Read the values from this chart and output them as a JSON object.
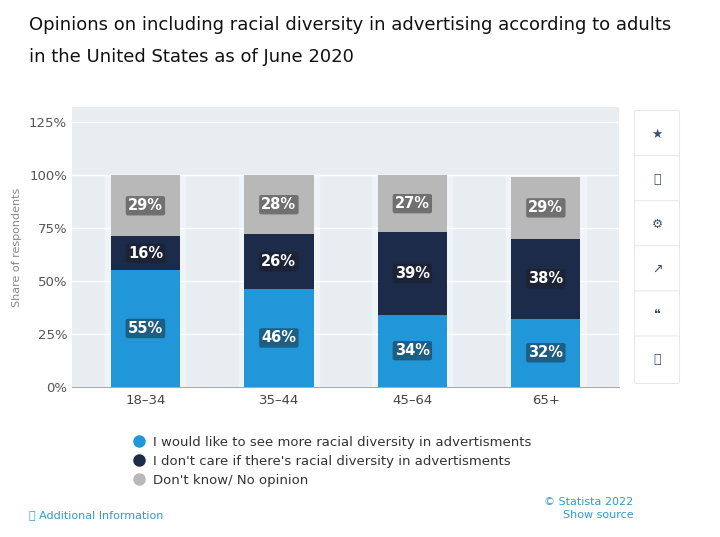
{
  "title_line1": "Opinions on including racial diversity in advertising according to adults",
  "title_line2": "in the United States as of June 2020",
  "categories": [
    "18–34",
    "35–44",
    "45–64",
    "65+"
  ],
  "series": {
    "blue": [
      55,
      46,
      34,
      32
    ],
    "dark": [
      16,
      26,
      39,
      38
    ],
    "gray": [
      29,
      28,
      27,
      29
    ]
  },
  "colors": {
    "blue": "#2196d8",
    "dark": "#1c2b4a",
    "gray": "#b8b8b8"
  },
  "legend_labels": [
    "I would like to see more racial diversity in advertisments",
    "I don't care if there's racial diversity in advertisments",
    "Don't know/ No opinion"
  ],
  "ylabel": "Share of respondents",
  "yticks": [
    0,
    25,
    50,
    75,
    100,
    125
  ],
  "ytick_labels": [
    "0%",
    "25%",
    "50%",
    "75%",
    "100%",
    "125%"
  ],
  "ylim": [
    0,
    132
  ],
  "bar_width": 0.52,
  "bg_color": "#ffffff",
  "chart_bg": "#e8edf2",
  "col_bg": "#f0f4f8",
  "footer_statista": "© Statista 2022",
  "footer_source": "Show source",
  "footer_info": "Additional Information",
  "title_fontsize": 13.0,
  "label_fontsize": 10.5,
  "tick_fontsize": 9.5,
  "legend_fontsize": 9.5
}
